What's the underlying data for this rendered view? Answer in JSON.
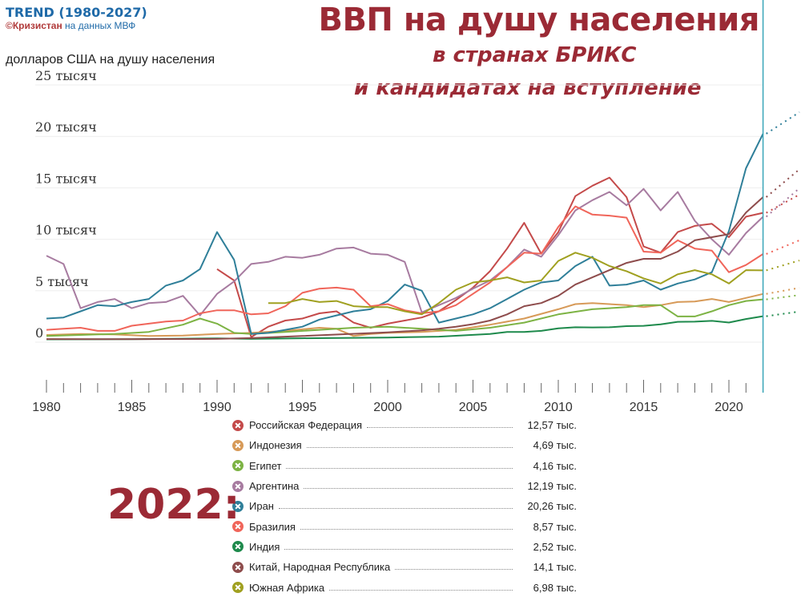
{
  "brand": {
    "title": "TREND (1980-2027)",
    "org": "©Кризистан",
    "source": "на данных МВФ"
  },
  "header": {
    "title": "ВВП на душу населения",
    "subtitle_line1": "в странах БРИКС",
    "subtitle_line2": "и кандидатах на вступление"
  },
  "unit_label": "долларов США на душу населения",
  "year_label": "2022:",
  "chart_data": {
    "type": "line",
    "ylabel": "долларов США на душу населения",
    "ylim": [
      0,
      25000
    ],
    "xlim": [
      1980,
      2022
    ],
    "y_ticks": [
      {
        "value": 0,
        "label": "0"
      },
      {
        "value": 5000,
        "label": "5 тысяч"
      },
      {
        "value": 10000,
        "label": "10 тысяч"
      },
      {
        "value": 15000,
        "label": "15 тысяч"
      },
      {
        "value": 20000,
        "label": "20 тысяч"
      },
      {
        "value": 25000,
        "label": "25 тысяч"
      }
    ],
    "x_ticks": [
      1980,
      1985,
      1990,
      1995,
      2000,
      2005,
      2010,
      2015,
      2020
    ],
    "grid": true,
    "marker_year": 2022,
    "projection": "dotted to 2027",
    "series": [
      {
        "name": "Российская Федерация",
        "color": "#c44a4a",
        "value_2022": "12,57 тыс.",
        "x": [
          1990,
          1991,
          1992,
          1993,
          1994,
          1995,
          1996,
          1997,
          1998,
          1999,
          2000,
          2001,
          2002,
          2003,
          2004,
          2005,
          2006,
          2007,
          2008,
          2009,
          2010,
          2011,
          2012,
          2013,
          2014,
          2015,
          2016,
          2017,
          2018,
          2019,
          2020,
          2021,
          2022
        ],
        "y": [
          7100,
          6000,
          500,
          1500,
          2100,
          2300,
          2800,
          3000,
          1900,
          1400,
          1800,
          2100,
          2400,
          3000,
          4100,
          5300,
          6900,
          9100,
          11600,
          8600,
          10700,
          14200,
          15200,
          16000,
          14100,
          9300,
          8700,
          10700,
          11300,
          11500,
          10200,
          12200,
          12570
        ]
      },
      {
        "name": "Индонезия",
        "color": "#d79a58",
        "value_2022": "4,69 тыс.",
        "x": [
          1980,
          1982,
          1984,
          1986,
          1988,
          1990,
          1992,
          1994,
          1996,
          1997,
          1998,
          1999,
          2000,
          2002,
          2004,
          2006,
          2008,
          2010,
          2011,
          2012,
          2013,
          2014,
          2015,
          2016,
          2017,
          2018,
          2019,
          2020,
          2021,
          2022
        ],
        "y": [
          700,
          800,
          750,
          600,
          650,
          800,
          900,
          1100,
          1400,
          1300,
          600,
          800,
          900,
          1000,
          1200,
          1700,
          2300,
          3200,
          3700,
          3800,
          3700,
          3600,
          3400,
          3600,
          3900,
          3950,
          4200,
          3900,
          4300,
          4690
        ]
      },
      {
        "name": "Египет",
        "color": "#7db344",
        "value_2022": "4,16 тыс.",
        "x": [
          1980,
          1982,
          1984,
          1986,
          1988,
          1989,
          1990,
          1991,
          1992,
          1994,
          1996,
          1998,
          2000,
          2002,
          2004,
          2006,
          2008,
          2010,
          2012,
          2014,
          2015,
          2016,
          2017,
          2018,
          2019,
          2020,
          2021,
          2022
        ],
        "y": [
          600,
          700,
          800,
          1000,
          1700,
          2300,
          1800,
          900,
          800,
          1000,
          1200,
          1400,
          1500,
          1300,
          1100,
          1400,
          1900,
          2700,
          3200,
          3400,
          3600,
          3600,
          2500,
          2500,
          3000,
          3600,
          4000,
          4160
        ]
      },
      {
        "name": "Аргентина",
        "color": "#a77ba0",
        "value_2022": "12,19 тыс.",
        "x": [
          1980,
          1981,
          1982,
          1983,
          1984,
          1985,
          1986,
          1987,
          1988,
          1989,
          1990,
          1991,
          1992,
          1993,
          1994,
          1995,
          1996,
          1997,
          1998,
          1999,
          2000,
          2001,
          2002,
          2003,
          2004,
          2005,
          2006,
          2007,
          2008,
          2009,
          2010,
          2011,
          2012,
          2013,
          2014,
          2015,
          2016,
          2017,
          2018,
          2019,
          2020,
          2021,
          2022
        ],
        "y": [
          8400,
          7600,
          3300,
          3900,
          4200,
          3300,
          3800,
          3900,
          4500,
          2600,
          4700,
          5900,
          7600,
          7800,
          8300,
          8200,
          8500,
          9100,
          9200,
          8600,
          8500,
          7800,
          2900,
          3600,
          4300,
          5200,
          6000,
          7300,
          9000,
          8300,
          10400,
          12800,
          13800,
          14600,
          13300,
          14900,
          12800,
          14600,
          11800,
          10000,
          8500,
          10600,
          12190
        ]
      },
      {
        "name": "Иран",
        "color": "#2f7f99",
        "value_2022": "20,26 тыс.",
        "x": [
          1980,
          1981,
          1982,
          1983,
          1984,
          1985,
          1986,
          1987,
          1988,
          1989,
          1990,
          1991,
          1992,
          1993,
          1994,
          1995,
          1996,
          1997,
          1998,
          1999,
          2000,
          2001,
          2002,
          2003,
          2004,
          2005,
          2006,
          2007,
          2008,
          2009,
          2010,
          2011,
          2012,
          2013,
          2014,
          2015,
          2016,
          2017,
          2018,
          2019,
          2020,
          2021,
          2022
        ],
        "y": [
          2300,
          2400,
          3000,
          3600,
          3500,
          3900,
          4200,
          5500,
          6000,
          7100,
          10700,
          8000,
          800,
          900,
          1200,
          1500,
          2200,
          2600,
          3000,
          3200,
          4000,
          5600,
          5000,
          1900,
          2300,
          2700,
          3300,
          4200,
          5100,
          5800,
          6000,
          7400,
          8300,
          5500,
          5600,
          6000,
          5100,
          5700,
          6100,
          6800,
          10800,
          16900,
          20260
        ]
      },
      {
        "name": "Бразилия",
        "color": "#f0655a",
        "value_2022": "8,57 тыс.",
        "x": [
          1980,
          1981,
          1982,
          1983,
          1984,
          1985,
          1986,
          1987,
          1988,
          1989,
          1990,
          1991,
          1992,
          1993,
          1994,
          1995,
          1996,
          1997,
          1998,
          1999,
          2000,
          2001,
          2002,
          2003,
          2004,
          2005,
          2006,
          2007,
          2008,
          2009,
          2010,
          2011,
          2012,
          2013,
          2014,
          2015,
          2016,
          2017,
          2018,
          2019,
          2020,
          2021,
          2022
        ],
        "y": [
          1200,
          1300,
          1400,
          1100,
          1100,
          1600,
          1800,
          2000,
          2100,
          2800,
          3100,
          3100,
          2700,
          2800,
          3500,
          4800,
          5200,
          5300,
          5100,
          3500,
          3700,
          3100,
          2800,
          3000,
          3600,
          4700,
          5800,
          7300,
          8700,
          8600,
          11200,
          13200,
          12400,
          12300,
          12100,
          8800,
          8700,
          9900,
          9100,
          8900,
          6800,
          7500,
          8570
        ]
      },
      {
        "name": "Индия",
        "color": "#1e8a4c",
        "value_2022": "2,52 тыс.",
        "x": [
          1980,
          1985,
          1990,
          1992,
          1995,
          2000,
          2003,
          2005,
          2006,
          2007,
          2008,
          2009,
          2010,
          2011,
          2012,
          2013,
          2014,
          2015,
          2016,
          2017,
          2018,
          2019,
          2020,
          2021,
          2022
        ],
        "y": [
          270,
          290,
          370,
          320,
          380,
          450,
          540,
          710,
          800,
          1000,
          1000,
          1100,
          1350,
          1450,
          1430,
          1450,
          1560,
          1590,
          1730,
          1980,
          1990,
          2070,
          1910,
          2250,
          2520
        ]
      },
      {
        "name": "Китай, Народная Республика",
        "color": "#8e4c4c",
        "value_2022": "14,1 тыс.",
        "x": [
          1980,
          1985,
          1990,
          1992,
          1995,
          2000,
          2002,
          2003,
          2004,
          2005,
          2006,
          2007,
          2008,
          2009,
          2010,
          2011,
          2012,
          2013,
          2014,
          2015,
          2016,
          2017,
          2018,
          2019,
          2020,
          2021,
          2022
        ],
        "y": [
          300,
          290,
          320,
          400,
          600,
          950,
          1150,
          1300,
          1500,
          1750,
          2100,
          2700,
          3500,
          3800,
          4500,
          5600,
          6300,
          7000,
          7700,
          8100,
          8100,
          8800,
          9900,
          10200,
          10500,
          12600,
          14100
        ]
      },
      {
        "name": "Южная Африка",
        "color": "#a0a020",
        "value_2022": "6,98 тыс.",
        "x": [
          1993,
          1994,
          1995,
          1996,
          1997,
          1998,
          1999,
          2000,
          2001,
          2002,
          2003,
          2004,
          2005,
          2006,
          2007,
          2008,
          2009,
          2010,
          2011,
          2012,
          2013,
          2014,
          2015,
          2016,
          2017,
          2018,
          2019,
          2020,
          2021,
          2022
        ],
        "y": [
          3800,
          3800,
          4200,
          3900,
          4000,
          3500,
          3400,
          3400,
          3000,
          2700,
          3800,
          5100,
          5800,
          6000,
          6300,
          5800,
          6000,
          7900,
          8700,
          8200,
          7400,
          6900,
          6200,
          5700,
          6600,
          7000,
          6600,
          5700,
          7000,
          6980
        ]
      }
    ]
  }
}
